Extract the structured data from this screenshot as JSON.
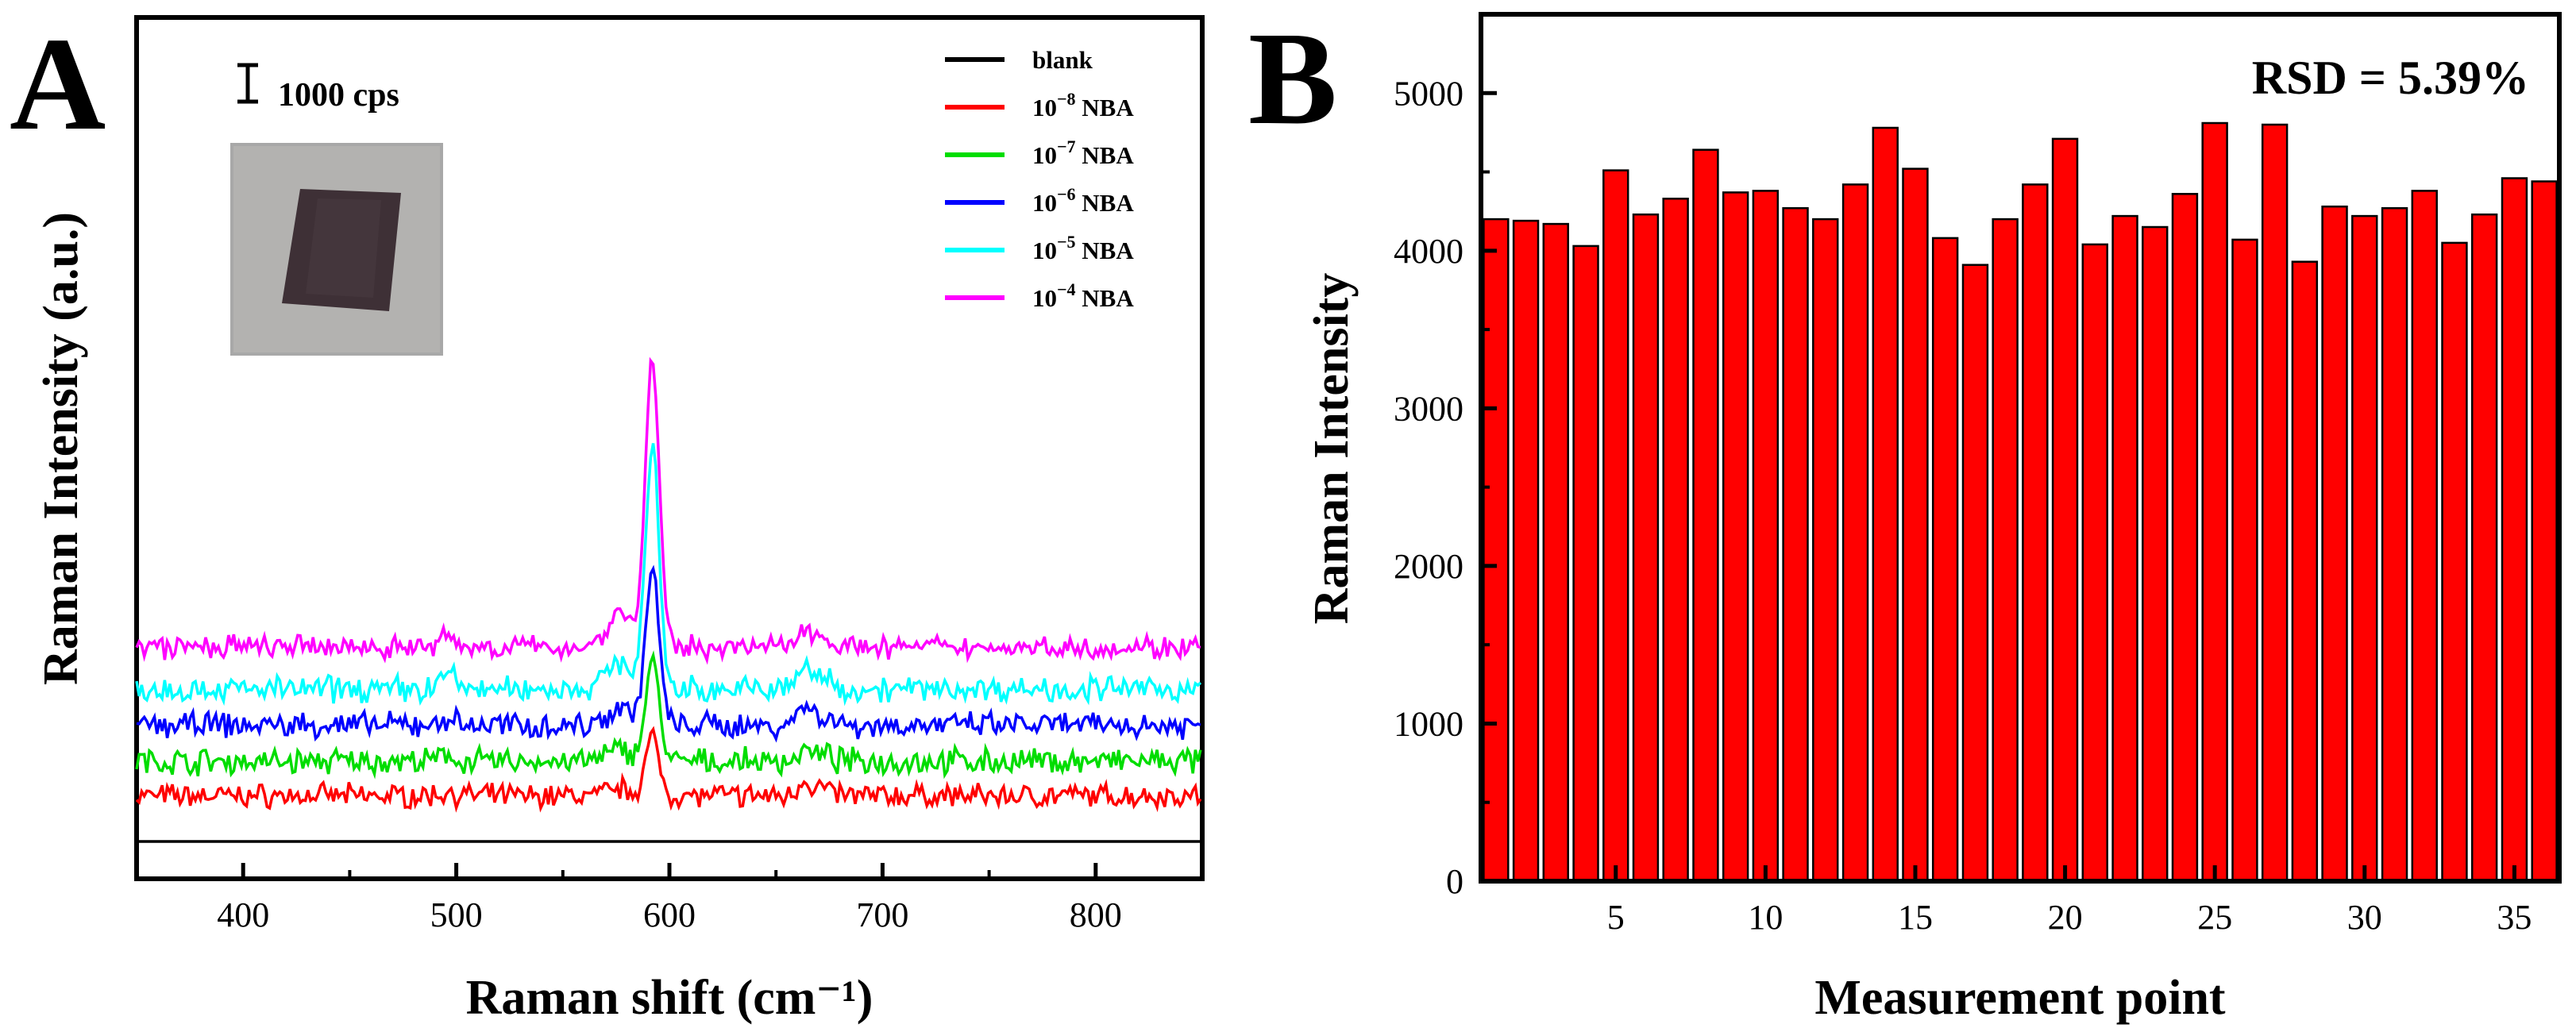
{
  "chart_data": [
    {
      "type": "line",
      "panel_label": "A",
      "title": "",
      "xlabel": "Raman shift (cm⁻¹)",
      "ylabel": "Raman Intensity (a.u.)",
      "xlim": [
        350,
        850
      ],
      "xticks": [
        400,
        500,
        600,
        700,
        800
      ],
      "xtick_labels": [
        "400",
        "500",
        "600",
        "700",
        "800"
      ],
      "scale_bar_label": "1000 cps",
      "legend_position": "top-right",
      "inset": "photo of substrate sample",
      "series": [
        {
          "name": "blank",
          "label_main": "blank",
          "label_exp": "",
          "label_tail": "",
          "color": "#000000",
          "baseline": 0,
          "peak_590": 0,
          "peak_495": 0,
          "peak_663": 0,
          "noise": 0
        },
        {
          "name": "10^-8 NBA",
          "label_main": "10",
          "label_exp": "−8",
          "label_tail": " NBA",
          "color": "#ff0000",
          "baseline": 1,
          "peak_590": 1.5,
          "peak_495": 0.1,
          "peak_663": 0.4,
          "noise": 0.45
        },
        {
          "name": "10^-7 NBA",
          "label_main": "10",
          "label_exp": "−7",
          "label_tail": " NBA",
          "color": "#00dd00",
          "baseline": 2,
          "peak_590": 2.6,
          "peak_495": 0.15,
          "peak_663": 0.3,
          "noise": 0.5
        },
        {
          "name": "10^-6 NBA",
          "label_main": "10",
          "label_exp": "−6",
          "label_tail": " NBA",
          "color": "#0000ff",
          "baseline": 3,
          "peak_590": 4.0,
          "peak_495": 0.2,
          "peak_663": 0.55,
          "noise": 0.5
        },
        {
          "name": "10^-5 NBA",
          "label_main": "10",
          "label_exp": "−5",
          "label_tail": " NBA",
          "color": "#00ffff",
          "baseline": 4,
          "peak_590": 6.2,
          "peak_495": 0.5,
          "peak_663": 0.6,
          "noise": 0.5
        },
        {
          "name": "10^-4 NBA",
          "label_main": "10",
          "label_exp": "−4",
          "label_tail": " NBA",
          "color": "#ff00ff",
          "baseline": 5,
          "peak_590": 7.6,
          "peak_495": 0.3,
          "peak_663": 0.6,
          "noise": 0.45
        }
      ]
    },
    {
      "type": "bar",
      "panel_label": "B",
      "title": "",
      "annotation": "RSD = 5.39%",
      "xlabel": "Measurement point",
      "ylabel": "Raman Intensity",
      "bar_color": "#ff0000",
      "ylim": [
        0,
        5500
      ],
      "yticks": [
        0,
        1000,
        2000,
        3000,
        4000,
        5000
      ],
      "ytick_labels": [
        "0",
        "1000",
        "2000",
        "3000",
        "4000",
        "5000"
      ],
      "xlim": [
        0.5,
        36.5
      ],
      "xticks": [
        5,
        10,
        15,
        20,
        25,
        30,
        35
      ],
      "xtick_labels": [
        "5",
        "10",
        "15",
        "20",
        "25",
        "30",
        "35"
      ],
      "categories": [
        1,
        2,
        3,
        4,
        5,
        6,
        7,
        8,
        9,
        10,
        11,
        12,
        13,
        14,
        15,
        16,
        17,
        18,
        19,
        20,
        21,
        22,
        23,
        24,
        25,
        26,
        27,
        28,
        29,
        30,
        31,
        32,
        33,
        34,
        35,
        36
      ],
      "values": [
        4200,
        4190,
        4170,
        4030,
        4510,
        4230,
        4330,
        4640,
        4370,
        4380,
        4270,
        4200,
        4420,
        4780,
        4520,
        4080,
        3910,
        4200,
        4420,
        4710,
        4040,
        4220,
        4150,
        4360,
        4810,
        4070,
        4800,
        3930,
        4280,
        4220,
        4270,
        4380,
        4050,
        4230,
        4460,
        4440
      ]
    }
  ]
}
